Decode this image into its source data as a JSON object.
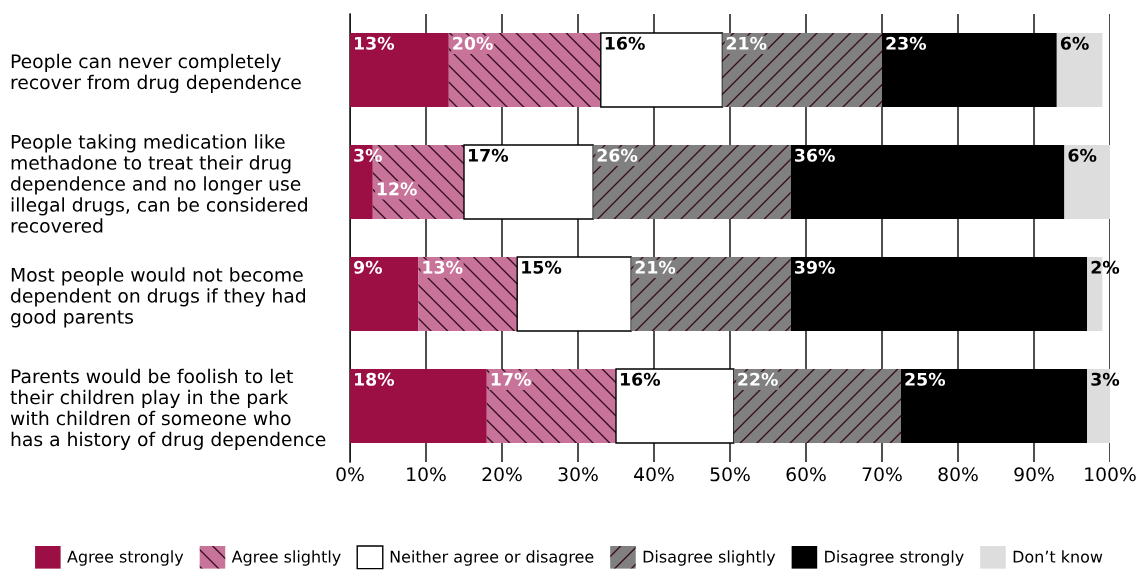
{
  "chart_data": {
    "type": "bar",
    "orientation": "horizontal",
    "stacked": true,
    "categories": [
      "People can never completely\nrecover from drug dependence",
      "People taking medication like\nmethadone to treat their drug\ndependence and no longer use\nillegal drugs, can be considered\nrecovered",
      "Most people would not become\ndependent on drugs if they had\ngood parents",
      "Parents would be foolish to let\ntheir children play in the park\nwith children of someone who\nhas a history of drug dependence"
    ],
    "series": [
      {
        "name": "Agree strongly",
        "color": "#9b0f45",
        "values": [
          13,
          3,
          9,
          18
        ],
        "value_labels": [
          "13%",
          "3%",
          "9%",
          "18%"
        ]
      },
      {
        "name": "Agree slightly",
        "color": "#c8749a",
        "values": [
          20,
          12,
          13,
          17
        ],
        "value_labels": [
          "20%",
          "12%",
          "13%",
          "17%"
        ]
      },
      {
        "name": "Neither agree or disagree",
        "color": "#ffffff",
        "values": [
          16,
          17,
          15,
          15.5
        ],
        "value_labels": [
          "16%",
          "17%",
          "15%",
          "16%"
        ]
      },
      {
        "name": "Disagree slightly",
        "color": "#808080",
        "values": [
          21,
          26,
          21,
          22
        ],
        "value_labels": [
          "21%",
          "26%",
          "21%",
          "22%"
        ]
      },
      {
        "name": "Disagree strongly",
        "color": "#000000",
        "values": [
          23,
          36,
          39,
          24.5
        ],
        "value_labels": [
          "23%",
          "36%",
          "39%",
          "25%"
        ]
      },
      {
        "name": "Don’t know",
        "color": "#dddddd",
        "values": [
          6,
          6,
          2,
          3
        ],
        "value_labels": [
          "6%",
          "6%",
          "2%",
          "3%"
        ]
      }
    ],
    "xlim": [
      0,
      100
    ],
    "xticks": [
      {
        "value": 0,
        "label": "0%"
      },
      {
        "value": 10,
        "label": "10%"
      },
      {
        "value": 20,
        "label": "20%"
      },
      {
        "value": 30,
        "label": "30%"
      },
      {
        "value": 40,
        "label": "40%"
      },
      {
        "value": 50,
        "label": "50%"
      },
      {
        "value": 60,
        "label": "60%"
      },
      {
        "value": 70,
        "label": "70%"
      },
      {
        "value": 80,
        "label": "80%"
      },
      {
        "value": 90,
        "label": "90%"
      },
      {
        "value": 100,
        "label": "100%"
      }
    ],
    "grid": "x",
    "legend": "bottom"
  }
}
